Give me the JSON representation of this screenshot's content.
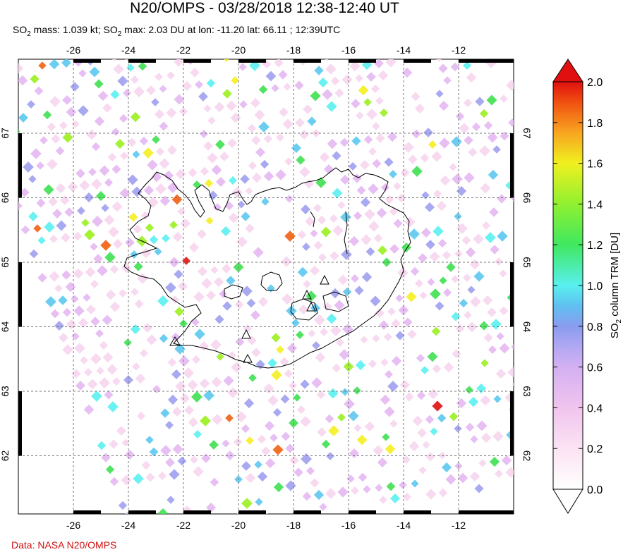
{
  "title": "N20/OMPS - 03/28/2018 12:38-12:40 UT",
  "subtitle": {
    "prefix": "SO",
    "sub1": "2",
    "mid": " mass: 1.039 kt; SO",
    "sub2": "2",
    "rest": " max: 2.03 DU at lon: -11.20 lat: 66.11 ; 12:39UTC"
  },
  "credit": "Data: NASA N20/OMPS",
  "map": {
    "lon_ticks": [
      "-26",
      "-24",
      "-22",
      "-20",
      "-18",
      "-16",
      "-14",
      "-12"
    ],
    "lat_ticks": [
      "67",
      "66",
      "65",
      "64",
      "63",
      "62"
    ],
    "lon_values": [
      -26,
      -24,
      -22,
      -20,
      -18,
      -16,
      -14,
      -12
    ],
    "lat_values": [
      67,
      66,
      65,
      64,
      63,
      62
    ],
    "grid": "dotted",
    "volcano_marker": "triangle-icon"
  },
  "colorbar": {
    "title_prefix": "SO",
    "title_sub": "2",
    "title_rest": " column TRM [DU]",
    "labels": [
      "2.0",
      "1.8",
      "1.6",
      "1.4",
      "1.2",
      "1.0",
      "0.8",
      "0.6",
      "0.4",
      "0.2",
      "0.0"
    ],
    "range": [
      0.0,
      2.0
    ],
    "colors": [
      "#ffffff",
      "#f7d6ee",
      "#e4b8f2",
      "#9fa0ef",
      "#5cc8f0",
      "#5af0f0",
      "#3ee050",
      "#9af020",
      "#f5f020",
      "#f8b020",
      "#f06010",
      "#e01010"
    ]
  }
}
